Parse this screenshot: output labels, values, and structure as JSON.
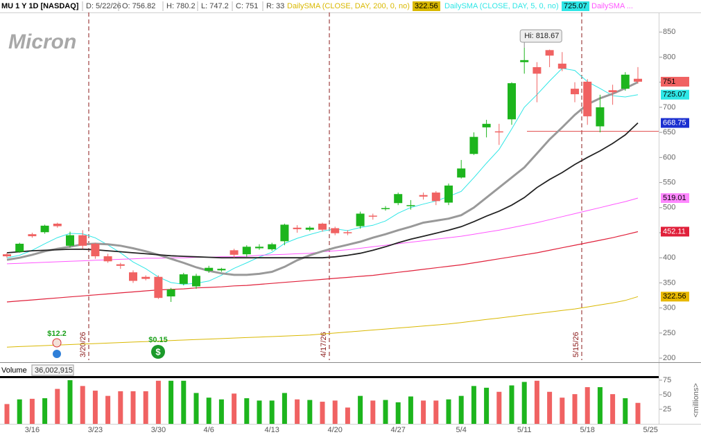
{
  "chart_data": {
    "type": "candlestick",
    "title": "MU 1 Y 1D [NASDAQ]",
    "header": [
      "D: 5/22/26",
      "O: 756.82",
      "H: 780.2",
      "L: 747.2",
      "C: 751",
      "R: 33"
    ],
    "logo": "Micron",
    "high_callout": "Hi: 818.67",
    "up_color": "#1db51d",
    "down_color": "#f06262",
    "categories": [
      null,
      null,
      "3/16",
      null,
      null,
      null,
      null,
      "3/23",
      null,
      null,
      null,
      null,
      "3/30",
      null,
      null,
      null,
      "4/6",
      null,
      null,
      null,
      null,
      "4/13",
      null,
      null,
      null,
      null,
      "4/20",
      null,
      null,
      null,
      null,
      "4/27",
      null,
      null,
      null,
      null,
      "5/4",
      null,
      null,
      null,
      null,
      "5/11",
      null,
      null,
      null,
      null,
      "5/18",
      null,
      null,
      null,
      null,
      "5/25"
    ],
    "open": [
      407,
      412,
      447,
      451,
      468,
      424,
      445,
      428,
      403,
      387,
      371,
      362,
      362,
      323,
      348,
      343,
      374,
      375,
      415,
      407,
      419,
      417,
      433,
      460,
      456,
      468,
      459,
      451,
      463,
      484,
      497,
      509,
      503,
      525,
      530,
      510,
      560,
      607,
      660,
      652,
      676,
      790,
      780,
      814,
      787,
      737,
      751,
      662,
      734,
      737,
      756.82,
      null
    ],
    "high": [
      410,
      430,
      450,
      466,
      470,
      452,
      455,
      430,
      408,
      390,
      375,
      365,
      365,
      340,
      370,
      368,
      384,
      380,
      418,
      425,
      427,
      430,
      468,
      465,
      463,
      470,
      462,
      455,
      492,
      488,
      503,
      530,
      515,
      530,
      533,
      548,
      595,
      650,
      675,
      667,
      750,
      818.67,
      790,
      815,
      810,
      750,
      756,
      725,
      745,
      770,
      780.2,
      null
    ],
    "low": [
      400,
      410,
      440,
      448,
      460,
      420,
      418,
      398,
      390,
      378,
      350,
      355,
      318,
      312,
      345,
      338,
      370,
      372,
      400,
      402,
      416,
      414,
      425,
      450,
      453,
      452,
      445,
      445,
      458,
      476,
      494,
      505,
      496,
      516,
      505,
      505,
      558,
      605,
      640,
      625,
      665,
      767,
      710,
      780,
      772,
      710,
      665,
      650,
      705,
      733,
      747.2,
      null
    ],
    "close": [
      403,
      428,
      443,
      464,
      463,
      445,
      424,
      403,
      393,
      384,
      354,
      358,
      320,
      337,
      367,
      364,
      380,
      378,
      406,
      422,
      422,
      427,
      466,
      457,
      460,
      456,
      449,
      449,
      488,
      482,
      499,
      527,
      505,
      522,
      513,
      544,
      578,
      641,
      667,
      650,
      748,
      794,
      767,
      803,
      777,
      726,
      682,
      700,
      730,
      765,
      751,
      null
    ],
    "ylim": [
      196,
      889
    ],
    "yticks": [
      200,
      250,
      300,
      350,
      400,
      450,
      500,
      550,
      600,
      650,
      700,
      750,
      800,
      850
    ],
    "series": [
      {
        "name": "DailySMA (CLOSE, DAY, 200, 0, no)",
        "header_value": 322.56,
        "color": "#d9b800",
        "width": 1,
        "values": [
          222,
          223,
          224,
          225,
          226,
          227,
          228,
          229,
          230,
          231,
          232,
          233,
          234,
          235,
          236,
          237,
          238,
          239,
          240,
          241,
          242,
          243,
          244,
          245,
          246,
          248,
          250,
          252,
          254,
          256,
          258,
          260,
          262,
          264,
          266,
          268,
          271,
          274,
          277,
          280,
          283,
          286,
          289,
          292,
          295,
          298,
          302,
          306,
          310,
          315,
          322.56,
          null
        ]
      },
      {
        "name": "DailySMA (CLOSE, DAY, 5, 0, no)",
        "header_value": 725.07,
        "color": "#2ee6e6",
        "width": 1,
        "values": [
          400,
          405,
          415,
          428,
          440.2,
          448.6,
          447.8,
          439.8,
          425.6,
          409.8,
          391.6,
          378.4,
          361.8,
          350.6,
          347.2,
          349.2,
          353.6,
          365.2,
          379,
          390,
          401.6,
          411,
          428.6,
          438.8,
          446.4,
          453.2,
          457.6,
          454.2,
          460.4,
          464.8,
          473.4,
          489,
          500.2,
          507,
          513.2,
          522.2,
          532.4,
          559.6,
          588.6,
          616,
          656.8,
          700,
          725.2,
          752.4,
          777.8,
          773.4,
          751,
          737.6,
          723,
          720.6,
          725.07,
          null
        ]
      },
      {
        "name": "DailySMA ...",
        "color": "#ff55ff",
        "width": 1,
        "values": [
          388,
          389,
          390,
          391,
          392,
          393,
          394,
          395,
          396,
          397,
          398,
          399,
          399,
          400,
          400,
          401,
          401,
          402,
          402,
          403,
          405,
          406,
          407,
          408,
          409,
          412,
          414,
          416,
          419,
          422,
          425,
          428,
          431,
          434,
          437,
          440,
          443,
          447,
          451,
          455,
          460,
          465,
          470,
          476,
          482,
          488,
          494,
          500,
          506,
          512,
          519.01,
          null
        ]
      },
      {
        "color": "#e0203a",
        "width": 1.2,
        "values": [
          312,
          314,
          316,
          318,
          320,
          322,
          324,
          326,
          328,
          330,
          332,
          334,
          336,
          337,
          338,
          340,
          341,
          342,
          344,
          345,
          347,
          349,
          351,
          353,
          355,
          357,
          359,
          361,
          363,
          365,
          368,
          371,
          374,
          377,
          380,
          383,
          386,
          390,
          394,
          398,
          402,
          406,
          410,
          415,
          420,
          425,
          430,
          435,
          440,
          446,
          452.11,
          null
        ]
      },
      {
        "color": "#999999",
        "width": 3,
        "values": [
          396,
          400,
          406,
          413,
          418,
          422,
          427,
          428,
          427,
          424,
          419,
          413,
          406,
          398,
          390,
          381,
          374,
          369,
          366,
          366,
          368,
          372,
          382,
          395,
          405,
          413,
          420,
          426,
          432,
          440,
          447,
          455,
          462,
          470,
          474,
          478,
          485,
          500,
          520,
          540,
          560,
          580,
          608,
          636,
          660,
          685,
          706,
          718,
          727,
          738,
          750,
          null
        ]
      },
      {
        "color": "#222222",
        "width": 1.8,
        "values": [
          410,
          412,
          414,
          415,
          416,
          417,
          417,
          416,
          414,
          412,
          410,
          408,
          406,
          404,
          403,
          402,
          401,
          400,
          400,
          400,
          400,
          400,
          400,
          400,
          400,
          400,
          402,
          405,
          409,
          415,
          422,
          430,
          437,
          443,
          449,
          455,
          462,
          472,
          483,
          493,
          505,
          520,
          540,
          556,
          570,
          586,
          600,
          613,
          628,
          645,
          668.75,
          null
        ]
      }
    ],
    "price_badges": [
      {
        "value": 751,
        "color": "#f06262",
        "text_color": "#000000"
      },
      {
        "value": 725.07,
        "color": "#2ee6e6",
        "text_color": "#000000"
      },
      {
        "value": 668.75,
        "color": "#1b2fd0",
        "text_color": "#ffffff"
      },
      {
        "value": 519.01,
        "color": "#ff88ff",
        "text_color": "#000000"
      },
      {
        "value": 452.11,
        "color": "#e0203a",
        "text_color": "#ffffff"
      },
      {
        "value": 322.56,
        "color": "#e8b800",
        "text_color": "#000000"
      }
    ],
    "level_line": {
      "value": 652,
      "color": "#e04848"
    },
    "events": [
      "3/20/26",
      "4/17/26",
      "5/15/26"
    ],
    "dividends": [
      "$12.2",
      "$0.15"
    ],
    "volume": {
      "label": "Volume",
      "readout": "36,002,915",
      "unit_label": "<millions>",
      "values": [
        34,
        42,
        43,
        44,
        60,
        75,
        65,
        57,
        48,
        56,
        56,
        56,
        74,
        74,
        74,
        53,
        45,
        42,
        52,
        44,
        40,
        40,
        53,
        42,
        41,
        38,
        40,
        28,
        48,
        40,
        41,
        37,
        47,
        40,
        40,
        42,
        48,
        65,
        62,
        55,
        66,
        72,
        74,
        55,
        45,
        51,
        63,
        63,
        51,
        44,
        36.002915,
        null
      ],
      "ylim": [
        0,
        78.5
      ],
      "yticks": [
        25,
        50,
        75
      ]
    }
  }
}
